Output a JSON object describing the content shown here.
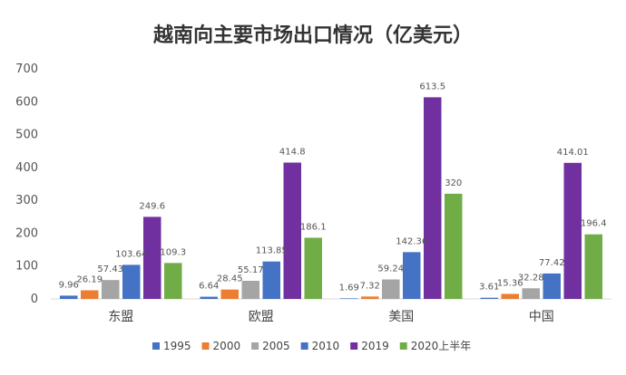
{
  "chart_data": {
    "type": "bar",
    "title": "越南向主要市场出口情况（亿美元）",
    "categories": [
      "东盟",
      "欧盟",
      "美国",
      "中国"
    ],
    "series": [
      {
        "name": "1995",
        "color": "#4472C4",
        "values": [
          9.96,
          6.64,
          1.69,
          3.61
        ],
        "labels": [
          "9.96",
          "6.64",
          "1.69",
          "3.61"
        ]
      },
      {
        "name": "2000",
        "color": "#ED7D31",
        "values": [
          26.19,
          28.45,
          7.32,
          15.36
        ],
        "labels": [
          "26.19",
          "28.45",
          "7.32",
          "15.36"
        ]
      },
      {
        "name": "2005",
        "color": "#A5A5A5",
        "values": [
          57.43,
          55.17,
          59.24,
          32.28
        ],
        "labels": [
          "57.43",
          "55.17",
          "59.24",
          "32.28"
        ]
      },
      {
        "name": "2010",
        "color": "#4472C4",
        "values": [
          103.64,
          113.85,
          142.36,
          77.42
        ],
        "labels": [
          "103.64",
          "113.85",
          "142.36",
          "77.42"
        ]
      },
      {
        "name": "2019",
        "color": "#7030A0",
        "values": [
          249.6,
          414.8,
          613.5,
          414.01
        ],
        "labels": [
          "249.6",
          "414.8",
          "613.5",
          "414.01"
        ]
      },
      {
        "name": "2020上半年",
        "color": "#70AD47",
        "values": [
          109.3,
          186.1,
          320,
          196.4
        ],
        "labels": [
          "109.3",
          "186.1",
          "320",
          "196.4"
        ]
      }
    ],
    "ylim": [
      0,
      700
    ],
    "yticks": [
      0,
      100,
      200,
      300,
      400,
      500,
      600,
      700
    ],
    "grid": false,
    "legend": "bottom"
  }
}
